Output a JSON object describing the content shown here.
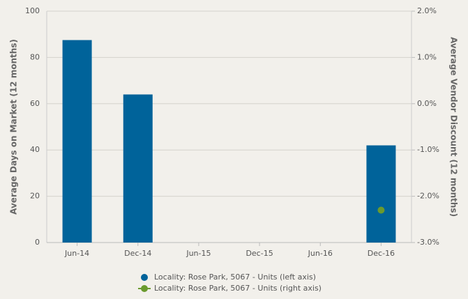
{
  "chart_data": {
    "type": "bar",
    "categories": [
      "Jun-14",
      "Dec-14",
      "Jun-15",
      "Dec-15",
      "Jun-16",
      "Dec-16"
    ],
    "series": [
      {
        "name": "Locality: Rose Park, 5067 - Units (left axis)",
        "type": "bar",
        "color": "#00639a",
        "values": [
          87.5,
          64,
          null,
          null,
          null,
          42
        ]
      },
      {
        "name": "Locality: Rose Park, 5067 - Units (right axis)",
        "type": "line",
        "axis": "y2",
        "color": "#6a9a2e",
        "values": [
          null,
          null,
          null,
          null,
          null,
          -2.3
        ]
      }
    ],
    "ylabel": "Average Days on Market (12 months)",
    "y2label": "Average Vendor Discount (12 months)",
    "ylim": [
      0,
      100
    ],
    "yticks": [
      0,
      20,
      40,
      60,
      80,
      100
    ],
    "y2lim": [
      -3,
      2
    ],
    "y2ticks": [
      {
        "value": -3,
        "label": "-3.0%"
      },
      {
        "value": -2,
        "label": "-2.0%"
      },
      {
        "value": -1,
        "label": "-1.0%"
      },
      {
        "value": 0,
        "label": "0.0%"
      },
      {
        "value": 1,
        "label": "1.0%"
      },
      {
        "value": 2,
        "label": "2.0%"
      }
    ],
    "grid": true,
    "legend": "bottom"
  }
}
